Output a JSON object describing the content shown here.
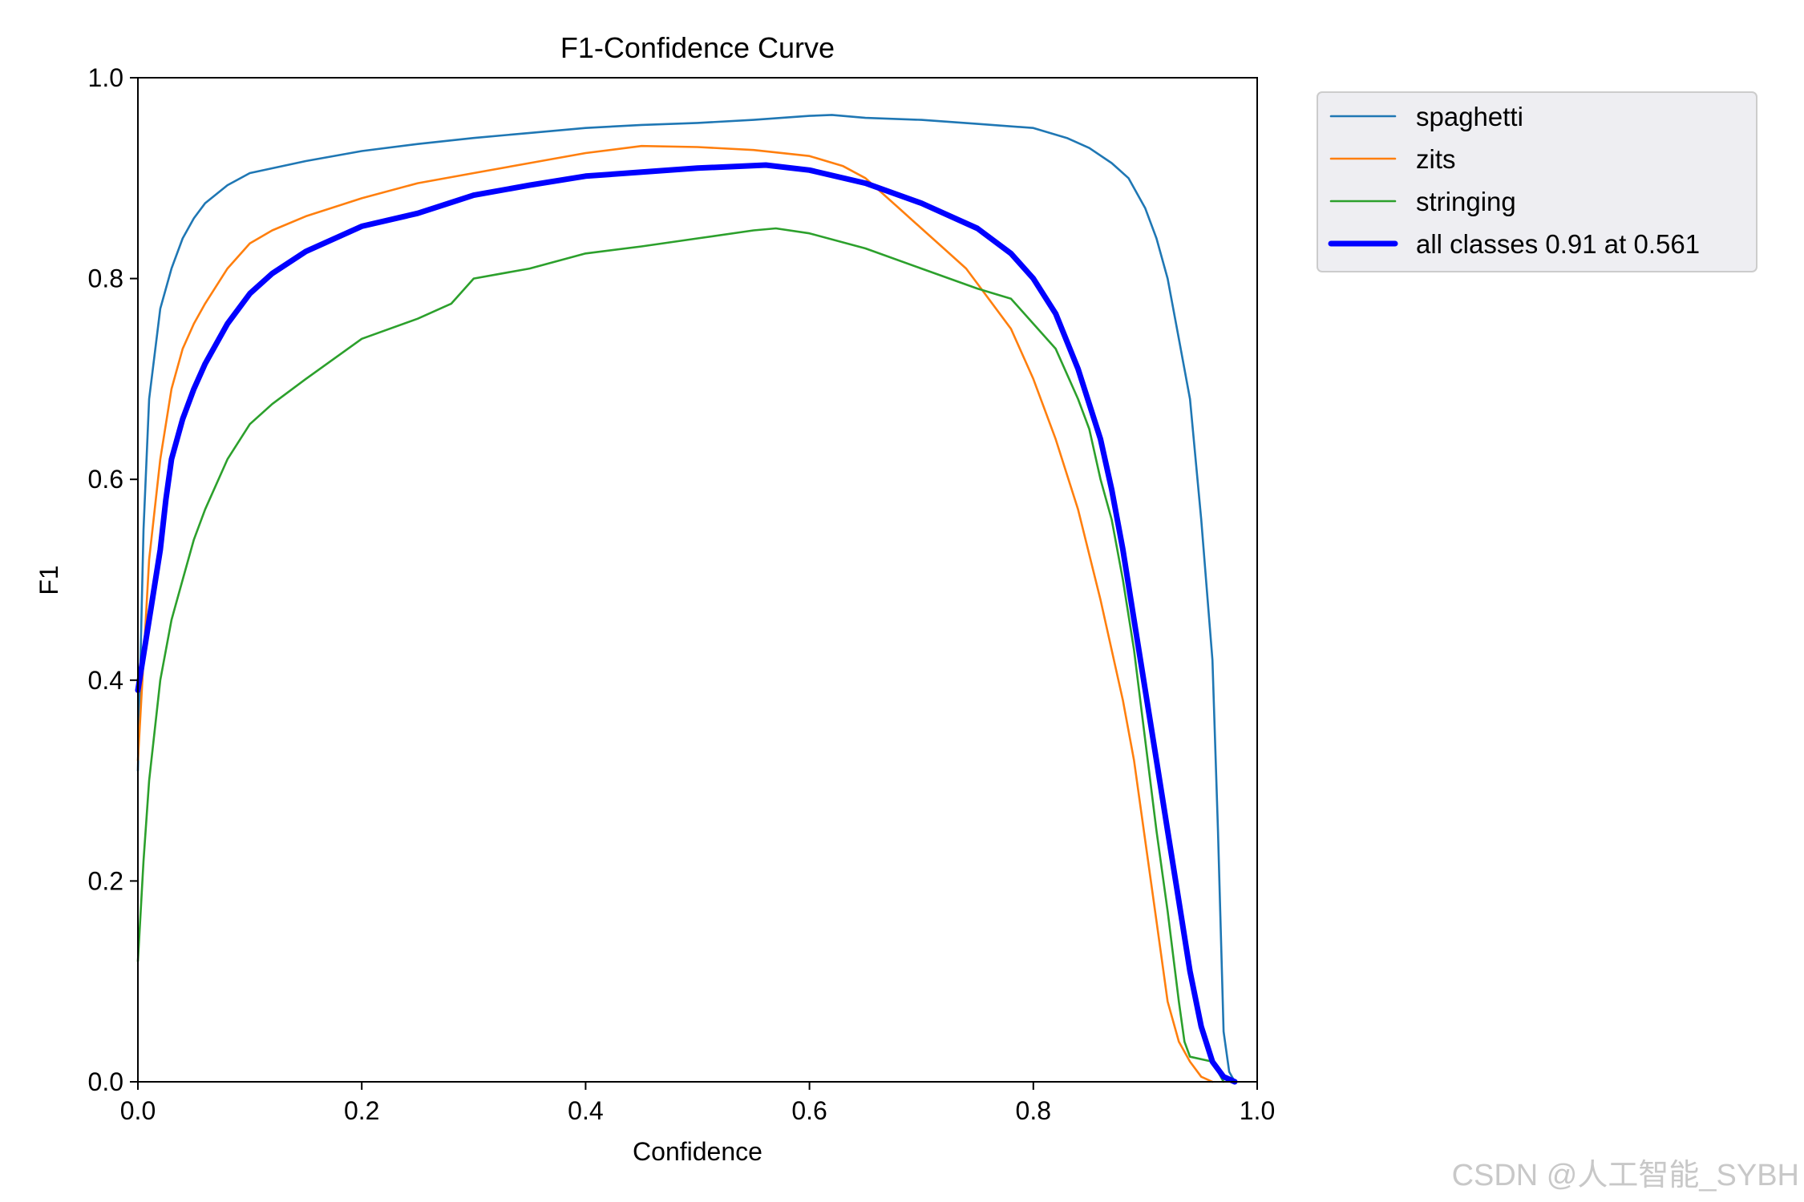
{
  "chart_data": {
    "type": "line",
    "title": "F1-Confidence Curve",
    "xlabel": "Confidence",
    "ylabel": "F1",
    "xlim": [
      0,
      1
    ],
    "ylim": [
      0,
      1
    ],
    "xticks": [
      "0.0",
      "0.2",
      "0.4",
      "0.6",
      "0.8",
      "1.0"
    ],
    "yticks": [
      "0.0",
      "0.2",
      "0.4",
      "0.6",
      "0.8",
      "1.0"
    ],
    "grid": false,
    "legend_position": "outside-top-right",
    "series": [
      {
        "name": "spaghetti",
        "color": "#1f77b4",
        "width": "thin",
        "points": [
          [
            0,
            0.31
          ],
          [
            0.005,
            0.55
          ],
          [
            0.01,
            0.68
          ],
          [
            0.02,
            0.77
          ],
          [
            0.03,
            0.81
          ],
          [
            0.04,
            0.84
          ],
          [
            0.05,
            0.86
          ],
          [
            0.06,
            0.875
          ],
          [
            0.08,
            0.893
          ],
          [
            0.1,
            0.905
          ],
          [
            0.15,
            0.917
          ],
          [
            0.2,
            0.927
          ],
          [
            0.25,
            0.934
          ],
          [
            0.3,
            0.94
          ],
          [
            0.35,
            0.945
          ],
          [
            0.4,
            0.95
          ],
          [
            0.45,
            0.953
          ],
          [
            0.5,
            0.955
          ],
          [
            0.55,
            0.958
          ],
          [
            0.6,
            0.962
          ],
          [
            0.62,
            0.963
          ],
          [
            0.65,
            0.96
          ],
          [
            0.7,
            0.958
          ],
          [
            0.75,
            0.954
          ],
          [
            0.8,
            0.95
          ],
          [
            0.83,
            0.94
          ],
          [
            0.85,
            0.93
          ],
          [
            0.87,
            0.915
          ],
          [
            0.885,
            0.9
          ],
          [
            0.9,
            0.87
          ],
          [
            0.91,
            0.84
          ],
          [
            0.92,
            0.8
          ],
          [
            0.93,
            0.74
          ],
          [
            0.94,
            0.68
          ],
          [
            0.95,
            0.56
          ],
          [
            0.96,
            0.42
          ],
          [
            0.965,
            0.25
          ],
          [
            0.97,
            0.05
          ],
          [
            0.975,
            0.01
          ],
          [
            0.98,
            0
          ]
        ]
      },
      {
        "name": "zits",
        "color": "#ff7f0e",
        "width": "thin",
        "points": [
          [
            0,
            0.32
          ],
          [
            0.01,
            0.52
          ],
          [
            0.02,
            0.62
          ],
          [
            0.03,
            0.69
          ],
          [
            0.04,
            0.73
          ],
          [
            0.05,
            0.755
          ],
          [
            0.06,
            0.775
          ],
          [
            0.08,
            0.81
          ],
          [
            0.1,
            0.835
          ],
          [
            0.12,
            0.848
          ],
          [
            0.15,
            0.862
          ],
          [
            0.2,
            0.88
          ],
          [
            0.25,
            0.895
          ],
          [
            0.3,
            0.905
          ],
          [
            0.35,
            0.915
          ],
          [
            0.4,
            0.925
          ],
          [
            0.45,
            0.932
          ],
          [
            0.5,
            0.931
          ],
          [
            0.55,
            0.928
          ],
          [
            0.6,
            0.922
          ],
          [
            0.63,
            0.912
          ],
          [
            0.65,
            0.9
          ],
          [
            0.68,
            0.87
          ],
          [
            0.7,
            0.85
          ],
          [
            0.72,
            0.83
          ],
          [
            0.74,
            0.81
          ],
          [
            0.75,
            0.795
          ],
          [
            0.78,
            0.75
          ],
          [
            0.8,
            0.7
          ],
          [
            0.82,
            0.64
          ],
          [
            0.84,
            0.57
          ],
          [
            0.86,
            0.48
          ],
          [
            0.88,
            0.38
          ],
          [
            0.89,
            0.32
          ],
          [
            0.9,
            0.24
          ],
          [
            0.91,
            0.16
          ],
          [
            0.92,
            0.08
          ],
          [
            0.93,
            0.04
          ],
          [
            0.94,
            0.02
          ],
          [
            0.95,
            0.005
          ],
          [
            0.96,
            0
          ]
        ]
      },
      {
        "name": "stringing",
        "color": "#2ca02c",
        "width": "thin",
        "points": [
          [
            0,
            0.12
          ],
          [
            0.005,
            0.22
          ],
          [
            0.01,
            0.3
          ],
          [
            0.02,
            0.4
          ],
          [
            0.03,
            0.46
          ],
          [
            0.04,
            0.5
          ],
          [
            0.05,
            0.54
          ],
          [
            0.06,
            0.57
          ],
          [
            0.08,
            0.62
          ],
          [
            0.1,
            0.655
          ],
          [
            0.12,
            0.675
          ],
          [
            0.15,
            0.7
          ],
          [
            0.2,
            0.74
          ],
          [
            0.25,
            0.76
          ],
          [
            0.28,
            0.775
          ],
          [
            0.3,
            0.8
          ],
          [
            0.35,
            0.81
          ],
          [
            0.4,
            0.825
          ],
          [
            0.45,
            0.832
          ],
          [
            0.5,
            0.84
          ],
          [
            0.55,
            0.848
          ],
          [
            0.57,
            0.85
          ],
          [
            0.6,
            0.845
          ],
          [
            0.65,
            0.83
          ],
          [
            0.7,
            0.81
          ],
          [
            0.75,
            0.79
          ],
          [
            0.78,
            0.78
          ],
          [
            0.8,
            0.755
          ],
          [
            0.82,
            0.73
          ],
          [
            0.84,
            0.68
          ],
          [
            0.85,
            0.65
          ],
          [
            0.86,
            0.6
          ],
          [
            0.87,
            0.56
          ],
          [
            0.88,
            0.5
          ],
          [
            0.89,
            0.43
          ],
          [
            0.9,
            0.34
          ],
          [
            0.91,
            0.25
          ],
          [
            0.92,
            0.17
          ],
          [
            0.93,
            0.08
          ],
          [
            0.935,
            0.04
          ],
          [
            0.94,
            0.025
          ],
          [
            0.96,
            0.02
          ],
          [
            0.97,
            0
          ]
        ]
      },
      {
        "name": "all classes 0.91 at 0.561",
        "color": "#0000ff",
        "width": "thick",
        "points": [
          [
            0,
            0.39
          ],
          [
            0.01,
            0.46
          ],
          [
            0.02,
            0.53
          ],
          [
            0.025,
            0.58
          ],
          [
            0.03,
            0.62
          ],
          [
            0.04,
            0.66
          ],
          [
            0.05,
            0.69
          ],
          [
            0.06,
            0.715
          ],
          [
            0.08,
            0.755
          ],
          [
            0.1,
            0.785
          ],
          [
            0.12,
            0.805
          ],
          [
            0.15,
            0.827
          ],
          [
            0.2,
            0.852
          ],
          [
            0.25,
            0.865
          ],
          [
            0.3,
            0.883
          ],
          [
            0.35,
            0.893
          ],
          [
            0.4,
            0.902
          ],
          [
            0.45,
            0.906
          ],
          [
            0.5,
            0.91
          ],
          [
            0.561,
            0.913
          ],
          [
            0.6,
            0.908
          ],
          [
            0.65,
            0.895
          ],
          [
            0.7,
            0.875
          ],
          [
            0.75,
            0.85
          ],
          [
            0.78,
            0.825
          ],
          [
            0.8,
            0.8
          ],
          [
            0.82,
            0.765
          ],
          [
            0.84,
            0.71
          ],
          [
            0.86,
            0.64
          ],
          [
            0.87,
            0.59
          ],
          [
            0.88,
            0.53
          ],
          [
            0.89,
            0.46
          ],
          [
            0.9,
            0.39
          ],
          [
            0.91,
            0.32
          ],
          [
            0.92,
            0.25
          ],
          [
            0.93,
            0.18
          ],
          [
            0.94,
            0.11
          ],
          [
            0.95,
            0.055
          ],
          [
            0.96,
            0.02
          ],
          [
            0.97,
            0.005
          ],
          [
            0.98,
            0
          ]
        ]
      }
    ]
  },
  "watermark": "CSDN @人工智能_SYBH"
}
